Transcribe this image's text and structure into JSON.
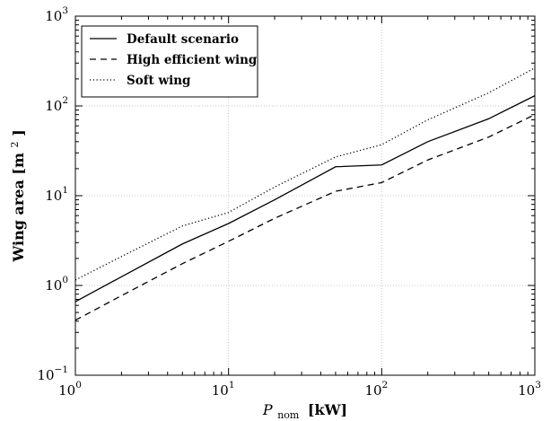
{
  "chart_data": {
    "type": "line",
    "xscale": "log",
    "yscale": "log",
    "xlim": [
      1,
      1000
    ],
    "ylim": [
      0.1,
      1000
    ],
    "grid": true,
    "legend_position": "top-left",
    "xlabel": {
      "main": "P",
      "subscript": "nom",
      "unit": "[kW]"
    },
    "ylabel": {
      "main": "Wing area [m",
      "superscript": "2",
      "close": "]"
    },
    "x_ticks": [
      {
        "base": "10",
        "exp": "0",
        "value": 1
      },
      {
        "base": "10",
        "exp": "1",
        "value": 10
      },
      {
        "base": "10",
        "exp": "2",
        "value": 100
      },
      {
        "base": "10",
        "exp": "3",
        "value": 1000
      }
    ],
    "y_ticks": [
      {
        "base": "10",
        "exp": "−1",
        "value": 0.1
      },
      {
        "base": "10",
        "exp": "0",
        "value": 1
      },
      {
        "base": "10",
        "exp": "1",
        "value": 10
      },
      {
        "base": "10",
        "exp": "2",
        "value": 100
      },
      {
        "base": "10",
        "exp": "3",
        "value": 1000
      }
    ],
    "series": [
      {
        "name": "Default scenario",
        "style": "solid",
        "color": "#000000",
        "x": [
          1,
          2,
          5,
          10,
          20,
          50,
          100,
          200,
          500,
          1000
        ],
        "y": [
          0.66,
          1.25,
          2.9,
          4.9,
          9.0,
          21.0,
          22,
          40,
          72,
          130
        ]
      },
      {
        "name": "High efficient wing",
        "style": "dashed",
        "color": "#000000",
        "x": [
          1,
          2,
          5,
          10,
          20,
          50,
          100,
          200,
          500,
          1000
        ],
        "y": [
          0.41,
          0.77,
          1.75,
          3.1,
          5.6,
          11.2,
          14,
          25,
          45,
          80
        ]
      },
      {
        "name": "Soft wing",
        "style": "dotted",
        "color": "#000000",
        "x": [
          1,
          2,
          5,
          10,
          20,
          50,
          100,
          200,
          500,
          1000
        ],
        "y": [
          1.15,
          2.1,
          4.6,
          6.5,
          12.5,
          27,
          37,
          70,
          140,
          265
        ]
      }
    ]
  }
}
